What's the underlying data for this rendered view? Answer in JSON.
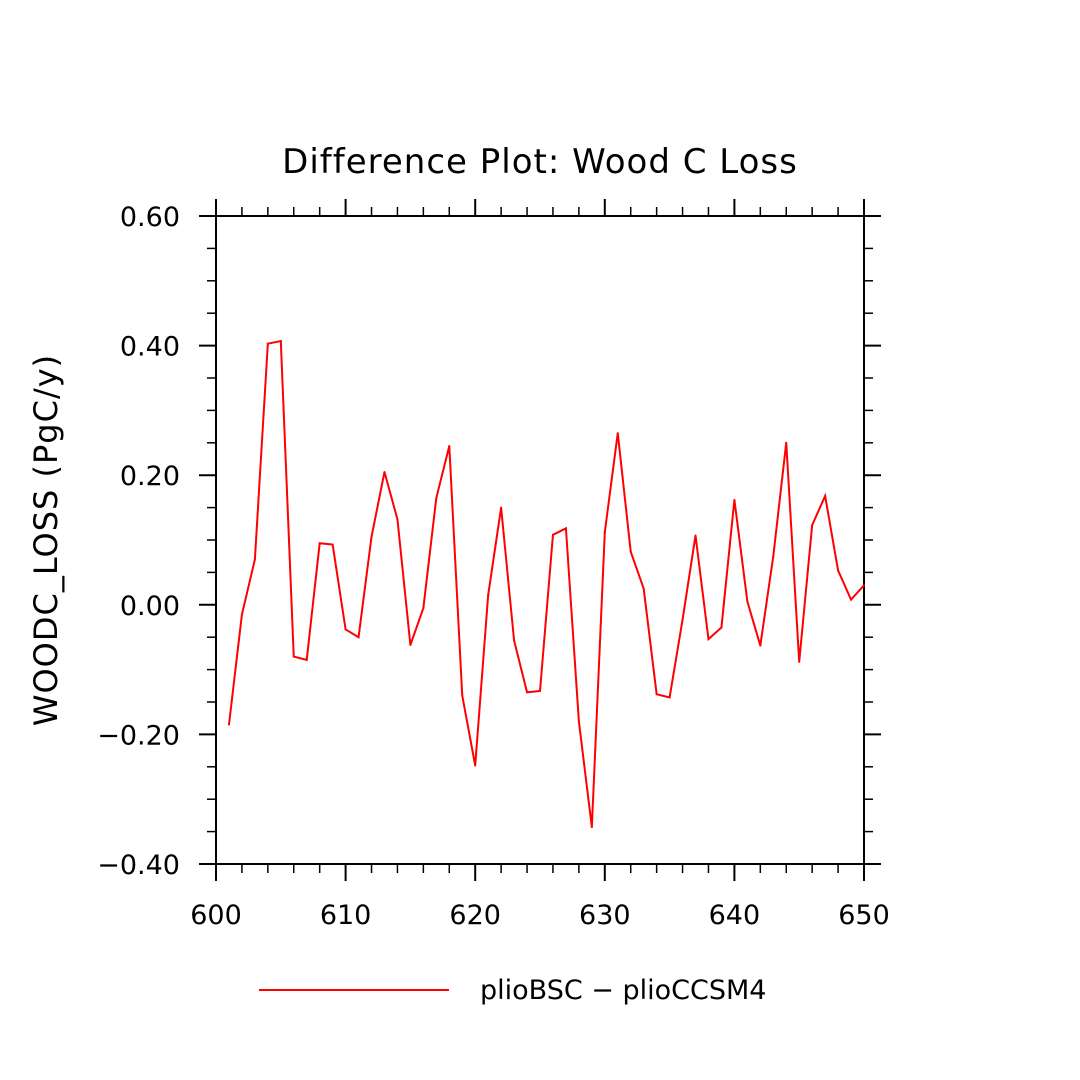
{
  "chart_data": {
    "type": "line",
    "title": "Difference Plot: Wood C Loss",
    "xlabel": "",
    "ylabel": "WOODC_LOSS  (PgC/y)",
    "xlim": [
      600,
      650
    ],
    "ylim": [
      -0.4,
      0.6
    ],
    "x_ticks": [
      600,
      610,
      620,
      630,
      640,
      650
    ],
    "y_ticks": [
      -0.4,
      -0.2,
      0.0,
      0.2,
      0.4,
      0.6
    ],
    "x_tick_labels": [
      "600",
      "610",
      "620",
      "630",
      "640",
      "650"
    ],
    "y_tick_labels": [
      "−0.40",
      "−0.20",
      "0.00",
      "0.20",
      "0.40",
      "0.60"
    ],
    "grid": false,
    "legend_position": "bottom",
    "series": [
      {
        "name": "plioBSC − plioCCSM4",
        "color": "#ff0000",
        "x": [
          601,
          602,
          603,
          604,
          605,
          606,
          607,
          608,
          609,
          610,
          611,
          612,
          613,
          614,
          615,
          616,
          617,
          618,
          619,
          620,
          621,
          622,
          623,
          624,
          625,
          626,
          627,
          628,
          629,
          630,
          631,
          632,
          633,
          634,
          635,
          636,
          637,
          638,
          639,
          640,
          641,
          642,
          643,
          644,
          645,
          646,
          647,
          648,
          649,
          650
        ],
        "values": [
          -0.185,
          -0.015,
          0.07,
          0.403,
          0.407,
          -0.08,
          -0.085,
          0.095,
          0.093,
          -0.038,
          -0.05,
          0.105,
          0.205,
          0.132,
          -0.062,
          -0.005,
          0.165,
          0.245,
          -0.14,
          -0.248,
          0.015,
          0.15,
          -0.055,
          -0.135,
          -0.133,
          0.108,
          0.118,
          -0.18,
          -0.343,
          0.112,
          0.265,
          0.082,
          0.025,
          -0.138,
          -0.143,
          -0.023,
          0.107,
          -0.053,
          -0.035,
          0.162,
          0.005,
          -0.063,
          0.075,
          0.25,
          -0.088,
          0.123,
          0.168,
          0.053,
          0.008,
          0.03
        ]
      }
    ]
  }
}
